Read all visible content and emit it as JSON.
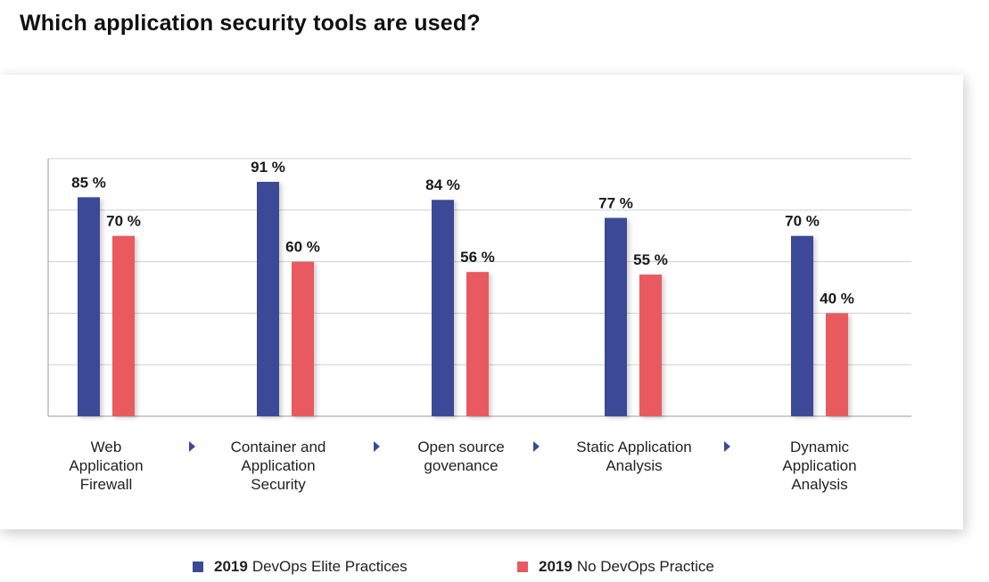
{
  "title": "Which application security tools are used?",
  "chart_data": {
    "type": "bar",
    "categories": [
      "Web Application Firewall",
      "Container and Application Security",
      "Open source govenance",
      "Static Application Analysis",
      "Dynamic Application Analysis"
    ],
    "series": [
      {
        "name": "2019 DevOps Elite Practices",
        "legend_year": "2019",
        "legend_text": "DevOps Elite Practices",
        "color": "#3a4a96",
        "values": [
          85,
          91,
          84,
          77,
          70
        ],
        "labels": [
          "85 %",
          "91 %",
          "84 %",
          "77 %",
          "70 %"
        ]
      },
      {
        "name": "2019 No DevOps Practice",
        "legend_year": "2019",
        "legend_text": "No DevOps Practice",
        "color": "#e85a60",
        "values": [
          70,
          60,
          56,
          55,
          40
        ],
        "labels": [
          "70 %",
          "60 %",
          "56 %",
          "55 %",
          "40 %"
        ]
      }
    ],
    "ylim": [
      0,
      100
    ],
    "grid": true,
    "legend_position": "bottom",
    "separator_color": "#3a4a96"
  },
  "category_lines": [
    [
      "Web",
      "Application",
      "Firewall"
    ],
    [
      "Container and",
      "Application",
      "Security"
    ],
    [
      "Open source",
      "govenance"
    ],
    [
      "Static Application",
      "Analysis"
    ],
    [
      "Dynamic",
      "Application",
      "Analysis"
    ]
  ]
}
